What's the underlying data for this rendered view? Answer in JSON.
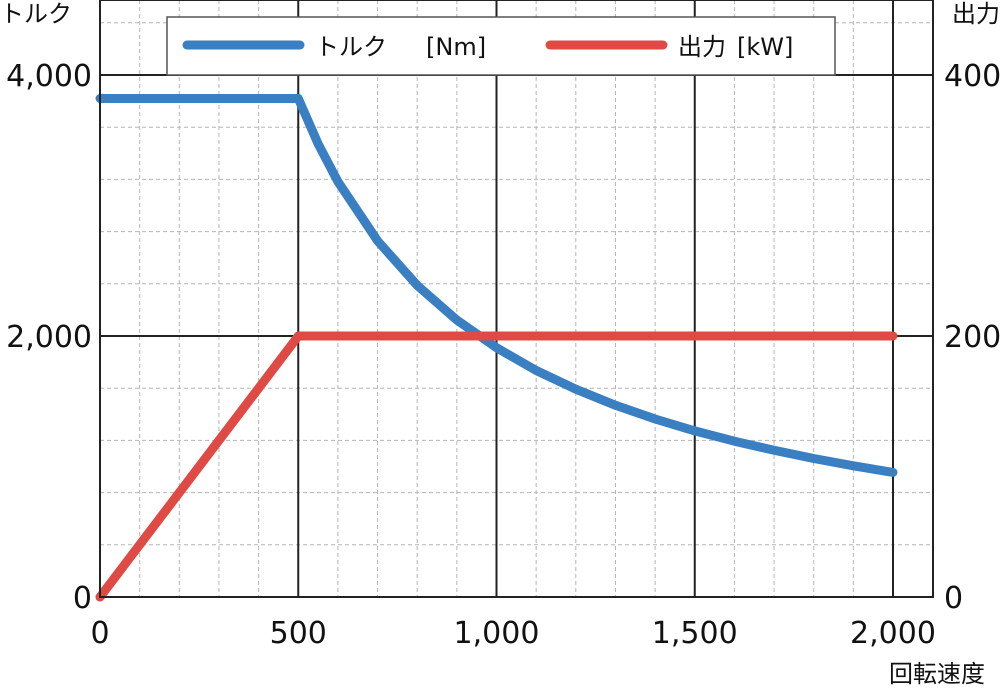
{
  "chart_data": {
    "type": "line",
    "x_axis": {
      "label": "回転速度",
      "range": [
        0,
        2000
      ],
      "major_ticks": [
        0,
        500,
        1000,
        1500,
        2000
      ],
      "tick_labels": [
        "0",
        "500",
        "1,000",
        "1,500",
        "2,000"
      ]
    },
    "y_left": {
      "label": "トルク",
      "range": [
        0,
        4000
      ],
      "major_ticks": [
        0,
        2000,
        4000
      ],
      "tick_labels": [
        "0",
        "2,000",
        "4,000"
      ]
    },
    "y_right": {
      "label": "出力",
      "range": [
        0,
        400
      ],
      "major_ticks": [
        0,
        200,
        400
      ],
      "tick_labels": [
        "0",
        "200",
        "400"
      ]
    },
    "grid": true,
    "legend": {
      "placement": "top"
    },
    "series": [
      {
        "name": "トルク",
        "unit": "[Nm]",
        "axis": "left",
        "color": "#3a7fc1",
        "x": [
          0,
          500,
          550,
          600,
          700,
          800,
          900,
          1000,
          1100,
          1200,
          1300,
          1400,
          1500,
          1600,
          1700,
          1800,
          1900,
          2000
        ],
        "y": [
          3820,
          3820,
          3473,
          3183,
          2729,
          2388,
          2122,
          1910,
          1736,
          1592,
          1469,
          1364,
          1273,
          1194,
          1124,
          1061,
          1005,
          955
        ]
      },
      {
        "name": "出力",
        "unit": "[kW]",
        "axis": "right",
        "color": "#e04a45",
        "x": [
          0,
          500,
          2000
        ],
        "y": [
          0,
          200,
          200
        ]
      }
    ]
  }
}
